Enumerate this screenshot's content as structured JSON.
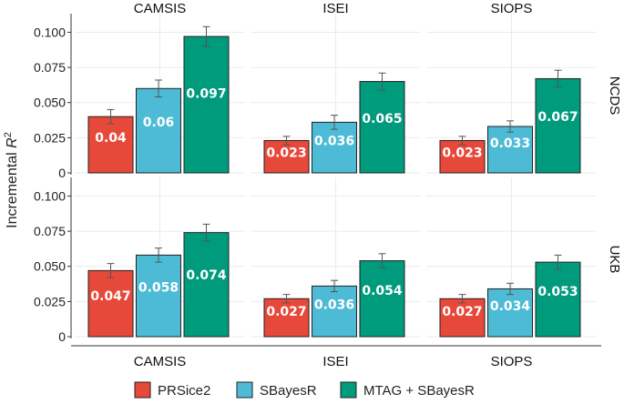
{
  "chart_data": {
    "type": "bar",
    "ylabel": "Incremental R²",
    "ylim": [
      0,
      0.11
    ],
    "yticks": [
      0,
      0.025,
      0.05,
      0.075,
      0.1
    ],
    "ytick_labels": [
      "0",
      "0.025",
      "0.050",
      "0.075",
      "0.100"
    ],
    "columns": [
      "CAMSIS",
      "ISEI",
      "SIOPS"
    ],
    "rows": [
      "NCDS",
      "UKB"
    ],
    "series": [
      {
        "name": "PRSice2",
        "color": "#e6483a"
      },
      {
        "name": "SBayesR",
        "color": "#4dbbd5"
      },
      {
        "name": "MTAG + SBayesR",
        "color": "#009a7d"
      }
    ],
    "panels": [
      {
        "row": "NCDS",
        "col": "CAMSIS",
        "values": [
          0.04,
          0.06,
          0.097
        ],
        "labels": [
          "0.04",
          "0.06",
          "0.097"
        ],
        "err": [
          0.005,
          0.006,
          0.007
        ]
      },
      {
        "row": "NCDS",
        "col": "ISEI",
        "values": [
          0.023,
          0.036,
          0.065
        ],
        "labels": [
          "0.023",
          "0.036",
          "0.065"
        ],
        "err": [
          0.003,
          0.005,
          0.006
        ]
      },
      {
        "row": "NCDS",
        "col": "SIOPS",
        "values": [
          0.023,
          0.033,
          0.067
        ],
        "labels": [
          "0.023",
          "0.033",
          "0.067"
        ],
        "err": [
          0.003,
          0.004,
          0.006
        ]
      },
      {
        "row": "UKB",
        "col": "CAMSIS",
        "values": [
          0.047,
          0.058,
          0.074
        ],
        "labels": [
          "0.047",
          "0.058",
          "0.074"
        ],
        "err": [
          0.005,
          0.005,
          0.006
        ]
      },
      {
        "row": "UKB",
        "col": "ISEI",
        "values": [
          0.027,
          0.036,
          0.054
        ],
        "labels": [
          "0.027",
          "0.036",
          "0.054"
        ],
        "err": [
          0.003,
          0.004,
          0.005
        ]
      },
      {
        "row": "UKB",
        "col": "SIOPS",
        "values": [
          0.027,
          0.034,
          0.053
        ],
        "labels": [
          "0.027",
          "0.034",
          "0.053"
        ],
        "err": [
          0.003,
          0.004,
          0.005
        ]
      }
    ]
  }
}
